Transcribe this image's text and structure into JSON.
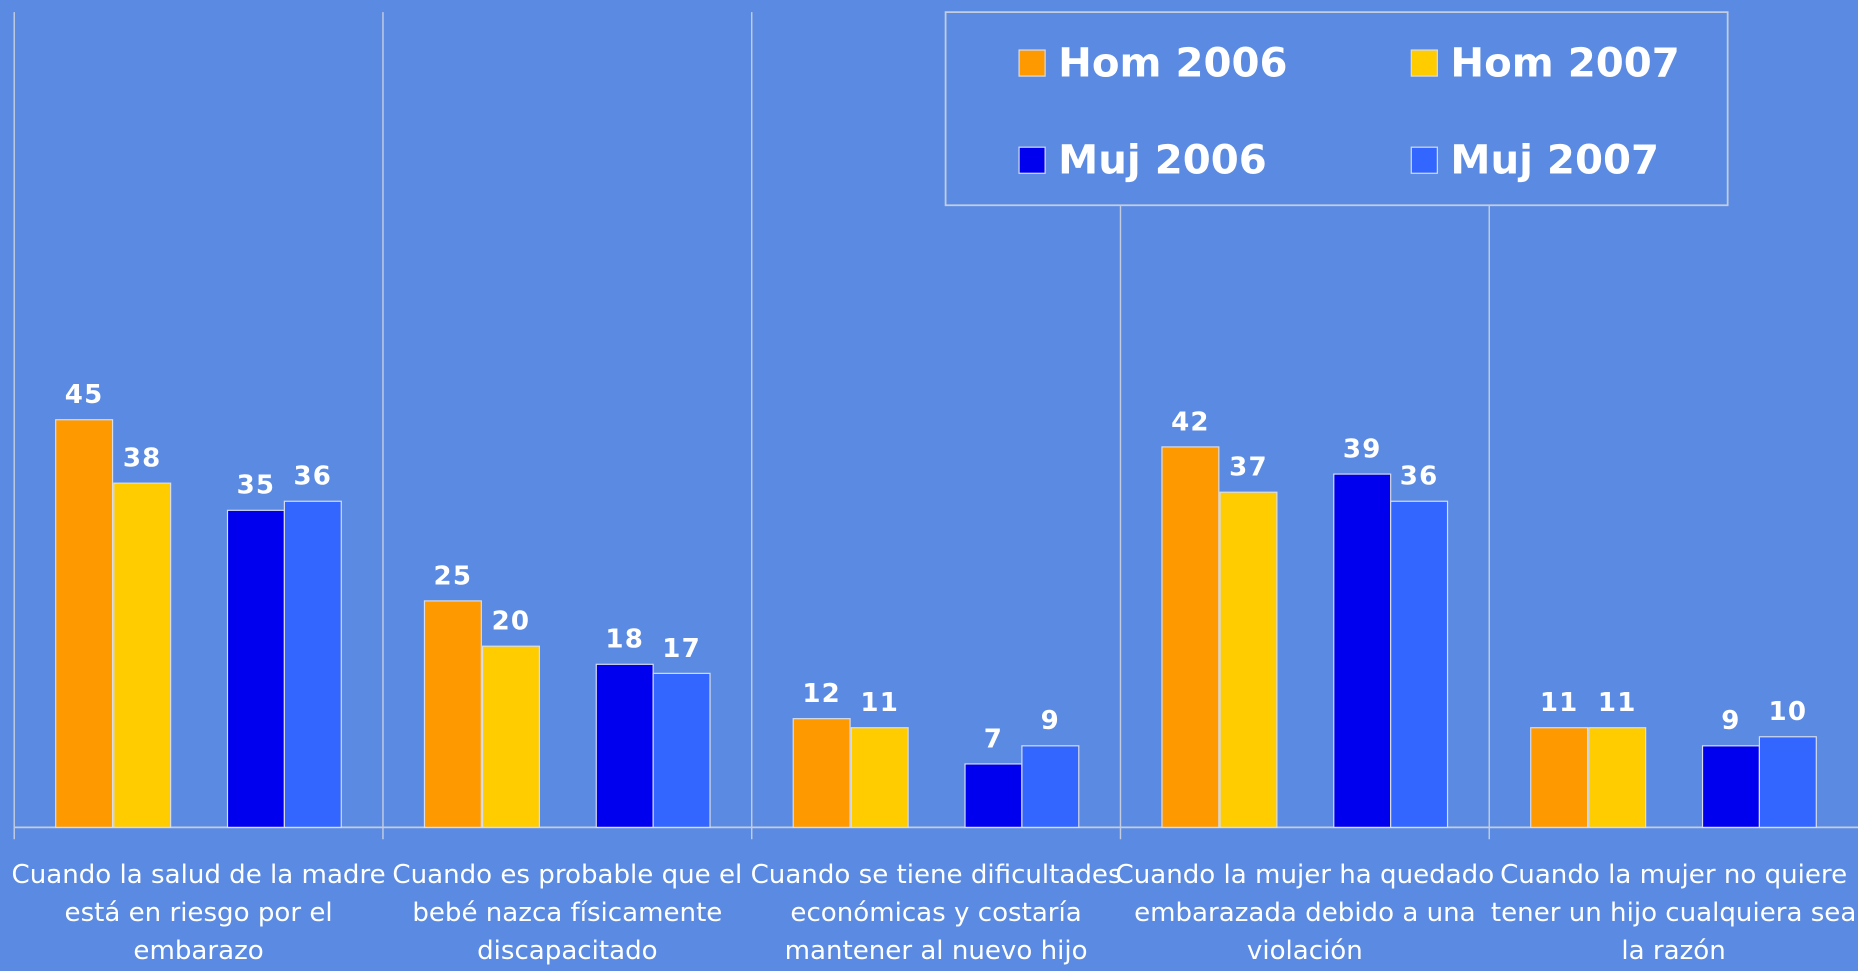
{
  "chart_data": {
    "type": "bar",
    "categories": [
      "Cuando la salud de la madre está en riesgo por el embarazo",
      "Cuando es probable que el bebé nazca físicamente discapacitado",
      "Cuando se tiene dificultades económicas y costaría mantener al nuevo hijo",
      "Cuando la mujer ha quedado embarazada debido a una violación",
      "Cuando la mujer no quiere tener un hijo cualquiera sea la razón"
    ],
    "series": [
      {
        "name": "Hom 2006",
        "color": "#ff9900",
        "values": [
          45,
          25,
          12,
          42,
          11
        ]
      },
      {
        "name": "Hom 2007",
        "color": "#ffcc00",
        "values": [
          38,
          20,
          11,
          37,
          11
        ]
      },
      {
        "name": "Muj 2006",
        "color": "#0000ee",
        "values": [
          35,
          18,
          7,
          39,
          9
        ]
      },
      {
        "name": "Muj 2007",
        "color": "#3366ff",
        "values": [
          36,
          17,
          9,
          36,
          10
        ]
      }
    ],
    "ylim": [
      0,
      90
    ],
    "legend": "top-right"
  }
}
